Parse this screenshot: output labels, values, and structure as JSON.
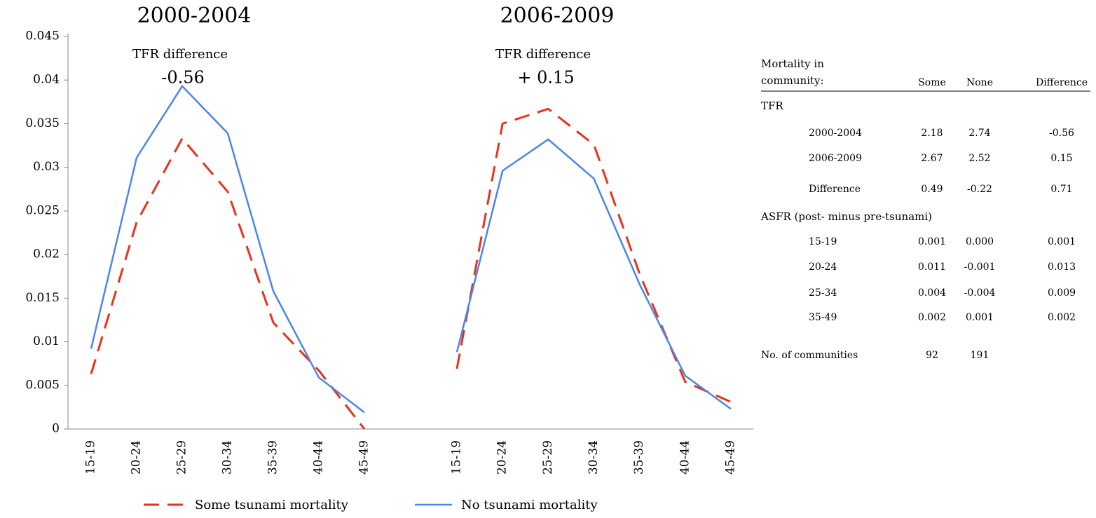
{
  "chart_data": {
    "type": "line",
    "ylim": [
      0,
      0.045
    ],
    "yticks": [
      0,
      0.005,
      0.01,
      0.015,
      0.02,
      0.025,
      0.03,
      0.035,
      0.04,
      0.045
    ],
    "series": [
      {
        "name": "Some tsunami mortality",
        "color": "#e8321b",
        "dashed": true
      },
      {
        "name": "No tsunami mortality",
        "color": "#4a86e8",
        "dashed": false
      }
    ],
    "panels": [
      {
        "title": "2000-2004",
        "annotation": "TFR difference",
        "annotation_value": "-0.56",
        "categories": [
          "15-19",
          "20-24",
          "25-29",
          "30-34",
          "35-39",
          "40-44",
          "45-49"
        ],
        "values": [
          [
            0.0063,
            0.0237,
            0.0333,
            0.0272,
            0.0122,
            0.0067,
            0
          ],
          [
            0.0092,
            0.0311,
            0.0393,
            0.0339,
            0.0158,
            0.0059,
            0.0019
          ]
        ]
      },
      {
        "title": "2006-2009",
        "annotation": "TFR difference",
        "annotation_value": "+ 0.15",
        "categories": [
          "15-19",
          "20-24",
          "25-29",
          "30-34",
          "35-39",
          "40-44",
          "45-49"
        ],
        "values": [
          [
            0.0069,
            0.035,
            0.0367,
            0.0326,
            0.0178,
            0.0054,
            0.0031
          ],
          [
            0.0088,
            0.0296,
            0.0332,
            0.0287,
            0.0166,
            0.0061,
            0.0023
          ]
        ]
      }
    ]
  },
  "table": {
    "header_lines": [
      "Mortality in",
      "community:"
    ],
    "columns": [
      "Some",
      "None",
      "Difference"
    ],
    "sections": [
      {
        "title": "TFR",
        "rows": [
          [
            "2000-2004",
            "2.18",
            "2.74",
            "-0.56"
          ],
          [
            "2006-2009",
            "2.67",
            "2.52",
            "0.15"
          ],
          [
            "Difference",
            "0.49",
            "-0.22",
            "0.71"
          ]
        ]
      },
      {
        "title": "ASFR  (post- minus pre-tsunami)",
        "rows": [
          [
            "15-19",
            "0.001",
            "0.000",
            "0.001"
          ],
          [
            "20-24",
            "0.011",
            "-0.001",
            "0.013"
          ],
          [
            "25-34",
            "0.004",
            "-0.004",
            "0.009"
          ],
          [
            "35-49",
            "0.002",
            "0.001",
            "0.002"
          ]
        ]
      }
    ],
    "footer": [
      "No. of communities",
      "92",
      "191"
    ]
  }
}
